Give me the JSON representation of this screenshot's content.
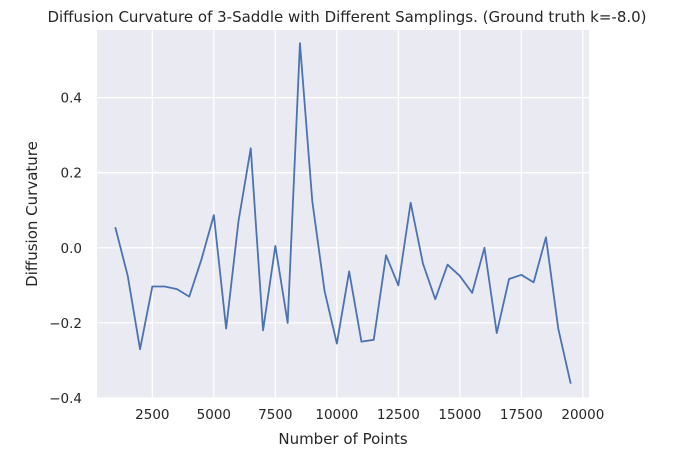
{
  "chart_data": {
    "type": "line",
    "title": "Diffusion Curvature of 3-Saddle with Different Samplings. (Ground truth k=-8.0)",
    "xlabel": "Number of Points",
    "ylabel": "Diffusion Curvature",
    "xlim": [
      250,
      20250
    ],
    "ylim": [
      -0.4,
      0.58
    ],
    "xticks": [
      2500,
      5000,
      7500,
      10000,
      12500,
      15000,
      17500,
      20000
    ],
    "xtick_labels": [
      "2500",
      "5000",
      "7500",
      "10000",
      "12500",
      "15000",
      "17500",
      "20000"
    ],
    "yticks": [
      -0.4,
      -0.2,
      0.0,
      0.2,
      0.4
    ],
    "ytick_labels": [
      "−0.4",
      "−0.2",
      "0.0",
      "0.2",
      "0.4"
    ],
    "grid": true,
    "series": [
      {
        "color": "#4c72b0",
        "x": [
          1000,
          1500,
          2000,
          2500,
          3000,
          3500,
          4000,
          4500,
          5000,
          5500,
          6000,
          6500,
          7000,
          7500,
          8000,
          8500,
          9000,
          9500,
          10000,
          10500,
          11000,
          11500,
          12000,
          12500,
          13000,
          13500,
          14000,
          14500,
          15000,
          15500,
          16000,
          16500,
          17000,
          17500,
          18000,
          18500,
          19000,
          19500
        ],
        "y": [
          0.053,
          -0.075,
          -0.27,
          -0.103,
          -0.103,
          -0.11,
          -0.13,
          -0.03,
          0.087,
          -0.215,
          0.07,
          0.265,
          -0.22,
          0.005,
          -0.2,
          0.545,
          0.125,
          -0.115,
          -0.255,
          -0.063,
          -0.25,
          -0.245,
          -0.02,
          -0.1,
          0.12,
          -0.042,
          -0.137,
          -0.045,
          -0.075,
          -0.12,
          0.0,
          -0.227,
          -0.083,
          -0.072,
          -0.092,
          0.028,
          -0.215,
          -0.36
        ]
      }
    ]
  }
}
